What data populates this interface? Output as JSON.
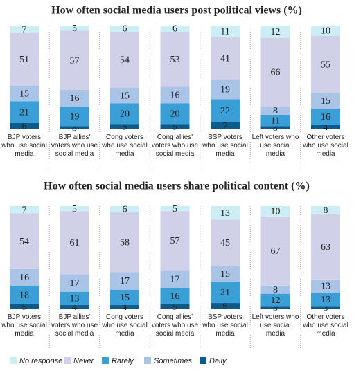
{
  "chart_data": [
    {
      "type": "bar",
      "stacked": true,
      "title": "How often social media users post political views (%)",
      "categories": [
        "BJP voters who use social media",
        "BJP allies' voters who use social media",
        "Cong voters who use social media",
        "Cong allies' voters who use social media",
        "BSP voters who use social media",
        "Left voters who use social media",
        "Other voters who use social media"
      ],
      "series": [
        {
          "name": "No response",
          "color": "#cdeef4",
          "values": [
            7,
            5,
            6,
            6,
            11,
            12,
            10
          ]
        },
        {
          "name": "Never",
          "color": "#d0d0e9",
          "values": [
            51,
            57,
            54,
            53,
            41,
            66,
            55
          ]
        },
        {
          "name": "Rarely",
          "color": "#3a9fd6",
          "values": [
            21,
            19,
            20,
            20,
            22,
            11,
            16
          ]
        },
        {
          "name": "Sometimes",
          "color": "#a9c4e6",
          "values": [
            15,
            16,
            15,
            16,
            19,
            8,
            15
          ]
        },
        {
          "name": "Daily",
          "color": "#0e5a8a",
          "values": [
            6,
            3,
            5,
            5,
            7,
            3,
            4
          ]
        }
      ]
    },
    {
      "type": "bar",
      "stacked": true,
      "title": "How often social media users share political content (%)",
      "categories": [
        "BJP voters who use social media",
        "BJP allies' voters who use social media",
        "Cong voters who use social media",
        "Cong allies' voters who use social media",
        "BSP voters who use social media",
        "Left voters who use social media",
        "Other voters who use social media"
      ],
      "series": [
        {
          "name": "No response",
          "color": "#cdeef4",
          "values": [
            7,
            5,
            6,
            5,
            13,
            10,
            8
          ]
        },
        {
          "name": "Never",
          "color": "#d0d0e9",
          "values": [
            54,
            61,
            58,
            57,
            45,
            67,
            63
          ]
        },
        {
          "name": "Rarely",
          "color": "#3a9fd6",
          "values": [
            18,
            13,
            15,
            16,
            21,
            12,
            13
          ]
        },
        {
          "name": "Sometimes",
          "color": "#a9c4e6",
          "values": [
            16,
            17,
            17,
            17,
            15,
            8,
            13
          ]
        },
        {
          "name": "Daily",
          "color": "#0e5a8a",
          "values": [
            5,
            4,
            4,
            5,
            6,
            3,
            3
          ]
        }
      ]
    }
  ]
}
